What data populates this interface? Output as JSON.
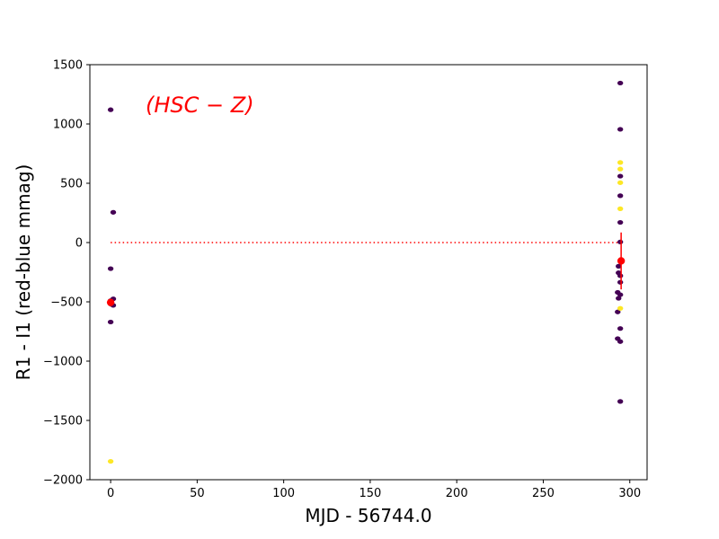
{
  "chart_data": {
    "type": "scatter",
    "xlabel": "MJD - 56744.0",
    "ylabel": "R1 - I1 (red-blue mmag)",
    "xlim": [
      -12,
      310
    ],
    "ylim": [
      -2000,
      1500
    ],
    "x_ticks": [
      0,
      50,
      100,
      150,
      200,
      250,
      300
    ],
    "y_ticks": [
      -2000,
      -1500,
      -1000,
      -500,
      0,
      500,
      1000,
      1500
    ],
    "x_tick_labels": [
      "0",
      "50",
      "100",
      "150",
      "200",
      "250",
      "300"
    ],
    "y_tick_labels": [
      "−2000",
      "−1500",
      "−1000",
      "−500",
      "0",
      "500",
      "1000",
      "1500"
    ],
    "annotation": {
      "text": "(HSC − Z)",
      "color": "#ff0000"
    },
    "grid": false,
    "colors": {
      "purple": "#440154",
      "yellow": "#fde725",
      "mean": "#ff0000",
      "reference": "#ff0000"
    },
    "reference_line": {
      "y": 0,
      "x_range": [
        0,
        295
      ],
      "style": "dotted"
    },
    "series": [
      {
        "color_key": "purple",
        "points": [
          [
            0,
            1120
          ],
          [
            0,
            -220
          ],
          [
            0,
            -670
          ],
          [
            0,
            -490
          ],
          [
            0,
            -510
          ],
          [
            0.3,
            -520
          ],
          [
            1.5,
            255
          ],
          [
            1.5,
            -475
          ],
          [
            1.5,
            -530
          ],
          [
            294.5,
            1345
          ],
          [
            294.5,
            955
          ],
          [
            294.5,
            560
          ],
          [
            294.5,
            395
          ],
          [
            294.5,
            170
          ],
          [
            294.5,
            5
          ],
          [
            293.5,
            -200
          ],
          [
            293.5,
            -255
          ],
          [
            294.5,
            -280
          ],
          [
            294.5,
            -335
          ],
          [
            293,
            -420
          ],
          [
            294.5,
            -440
          ],
          [
            293.5,
            -470
          ],
          [
            293,
            -585
          ],
          [
            294.5,
            -725
          ],
          [
            293,
            -810
          ],
          [
            294.5,
            -835
          ],
          [
            294.5,
            -1340
          ]
        ]
      },
      {
        "color_key": "yellow",
        "points": [
          [
            0,
            -1845
          ],
          [
            294.5,
            675
          ],
          [
            294.5,
            620
          ],
          [
            294.5,
            505
          ],
          [
            294.5,
            285
          ],
          [
            294.5,
            -555
          ]
        ]
      }
    ],
    "mean_points": [
      {
        "x": 0,
        "y": -505,
        "yerr": 15
      },
      {
        "x": 295,
        "y": -155,
        "yerr": 240
      }
    ]
  }
}
